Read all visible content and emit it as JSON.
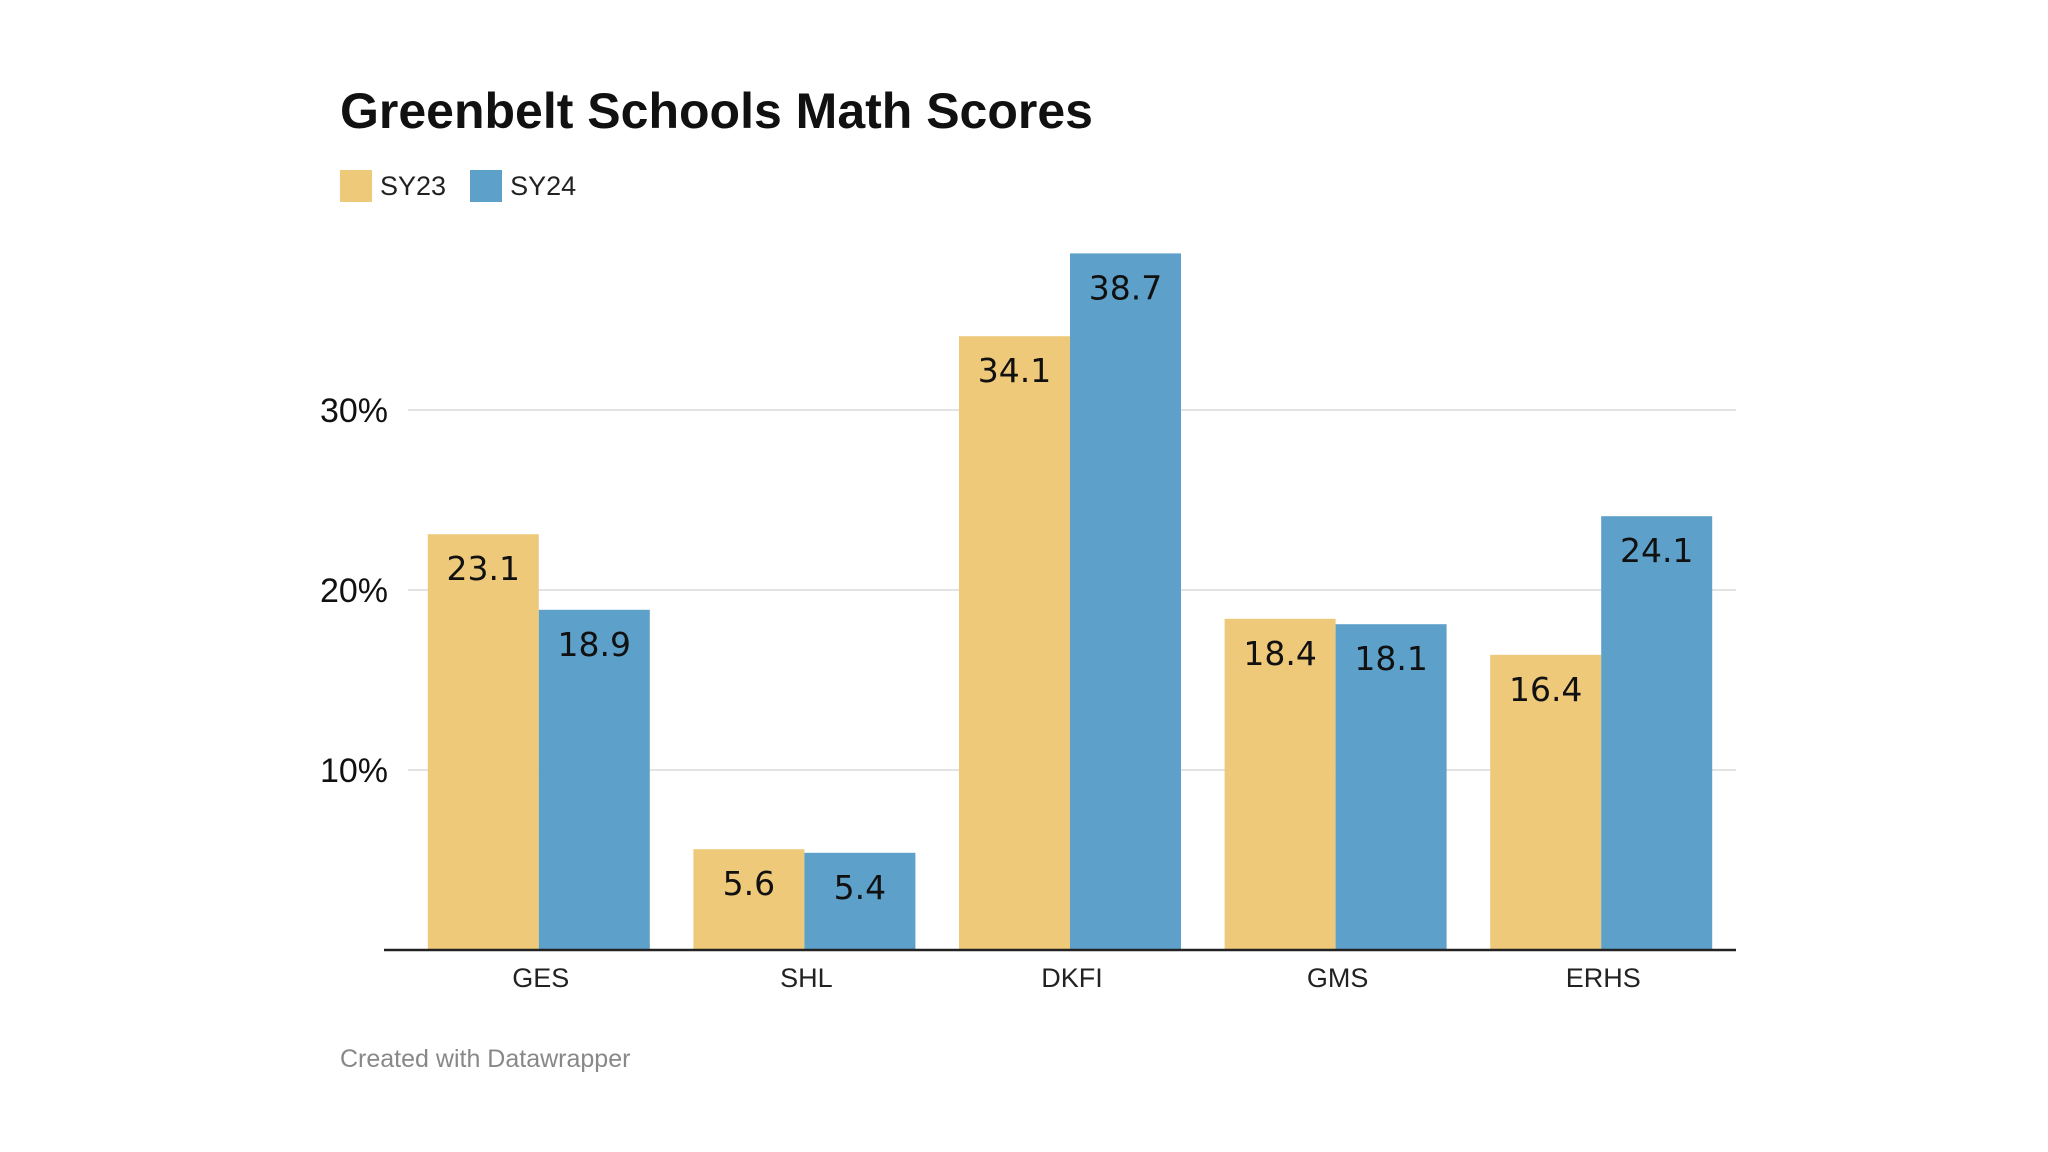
{
  "title": "Greenbelt Schools Math Scores",
  "footer": "Created with Datawrapper",
  "colors": {
    "SY23": "#EFC97A",
    "SY24": "#5DA0CA",
    "grid": "#e3e3e3",
    "axis": "#222222"
  },
  "chart_data": {
    "type": "bar",
    "title": "Greenbelt Schools Math Scores",
    "xlabel": "",
    "ylabel": "",
    "categories": [
      "GES",
      "SHL",
      "DKFI",
      "GMS",
      "ERHS"
    ],
    "series": [
      {
        "name": "SY23",
        "values": [
          23.1,
          5.6,
          34.1,
          18.4,
          16.4
        ],
        "color": "#EFC97A"
      },
      {
        "name": "SY24",
        "values": [
          18.9,
          5.4,
          38.7,
          18.1,
          24.1
        ],
        "color": "#5DA0CA"
      }
    ],
    "ylim": [
      0,
      40
    ],
    "yticks": [
      10,
      20,
      30
    ],
    "ytick_labels": [
      "10%",
      "20%",
      "30%"
    ],
    "grid": true,
    "legend_position": "top-left"
  }
}
